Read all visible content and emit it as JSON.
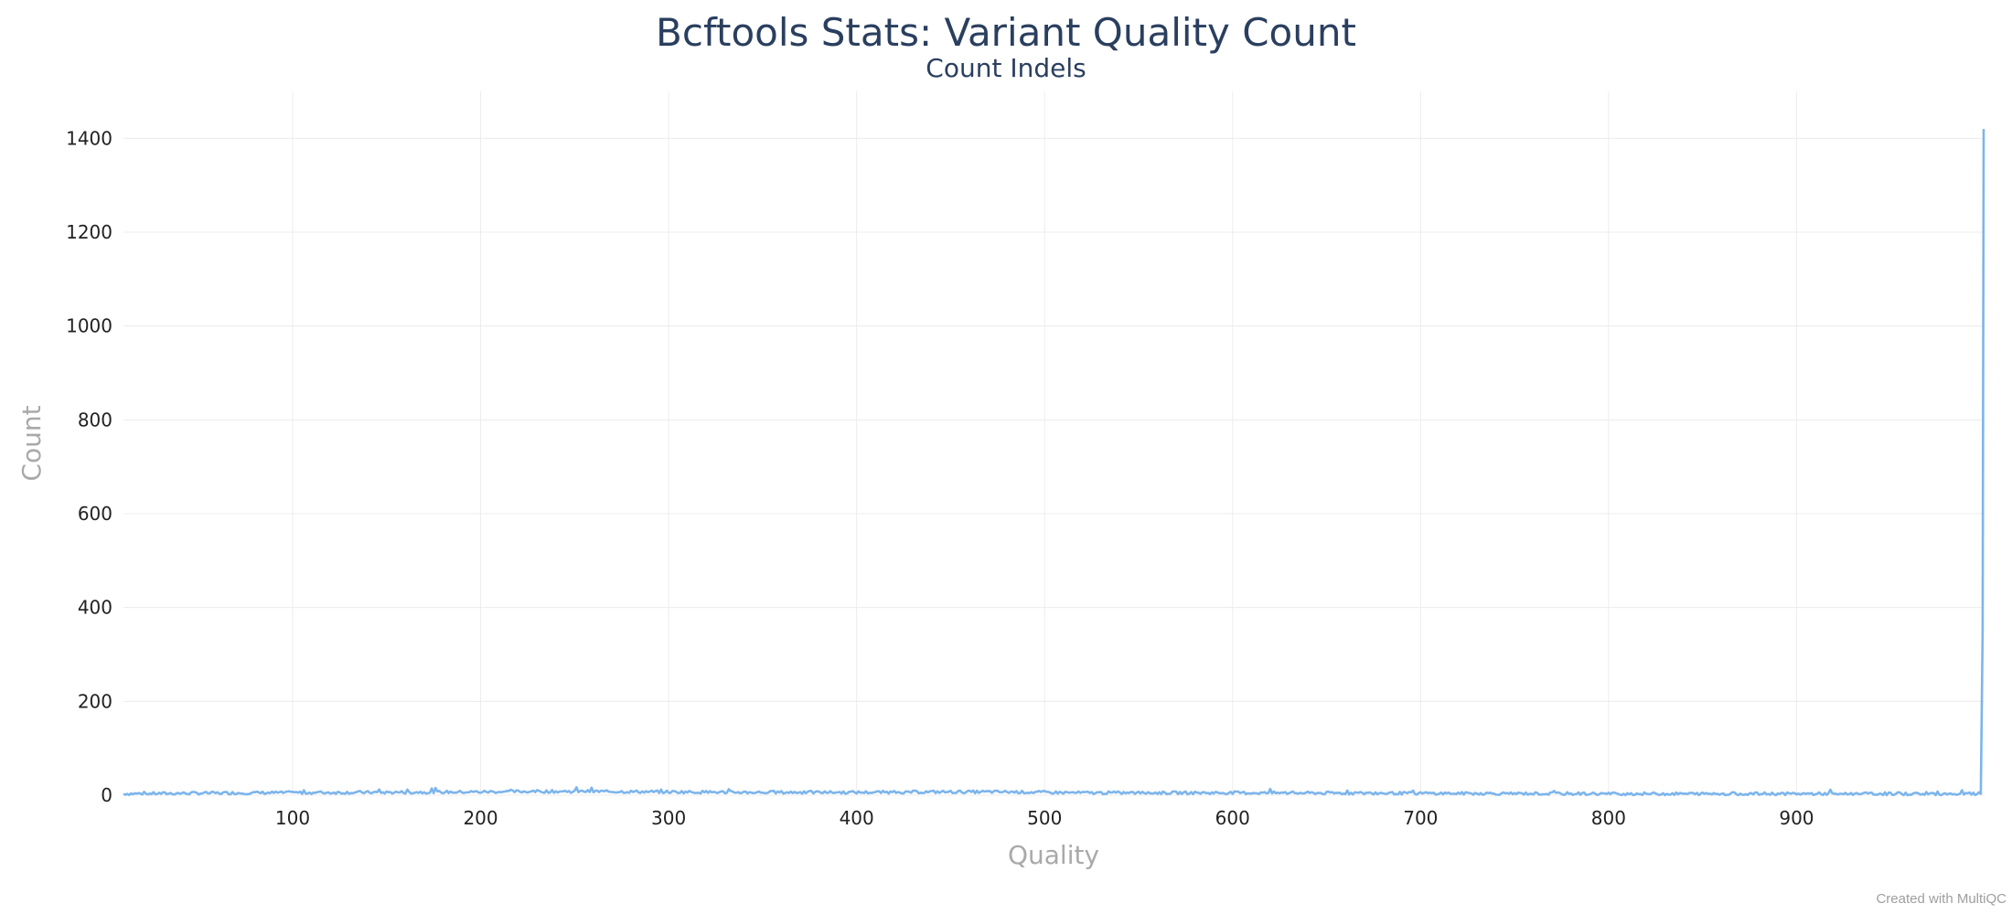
{
  "chart_data": {
    "type": "line",
    "title": "Bcftools Stats: Variant Quality Count",
    "subtitle": "Count Indels",
    "xlabel": "Quality",
    "ylabel": "Count",
    "xlim": [
      10,
      1000
    ],
    "ylim": [
      0,
      1500
    ],
    "xticks": [
      100,
      200,
      300,
      400,
      500,
      600,
      700,
      800,
      900
    ],
    "yticks": [
      0,
      200,
      400,
      600,
      800,
      1000,
      1200,
      1400
    ],
    "grid": true,
    "legend": "none",
    "series": [
      {
        "color": "#7cb5ec",
        "baseline": [
          [
            10,
            3
          ],
          [
            40,
            4
          ],
          [
            80,
            5
          ],
          [
            150,
            6
          ],
          [
            200,
            7
          ],
          [
            230,
            8
          ],
          [
            260,
            8
          ],
          [
            300,
            7
          ],
          [
            350,
            6
          ],
          [
            400,
            6
          ],
          [
            440,
            7
          ],
          [
            480,
            7
          ],
          [
            520,
            5
          ],
          [
            600,
            5
          ],
          [
            700,
            4
          ],
          [
            800,
            3
          ],
          [
            900,
            3
          ],
          [
            990,
            3
          ]
        ],
        "points": [
          [
            998,
            3
          ],
          [
            999,
            350
          ],
          [
            999.5,
            1420
          ]
        ]
      }
    ],
    "credit": "Created with MultiQC"
  }
}
